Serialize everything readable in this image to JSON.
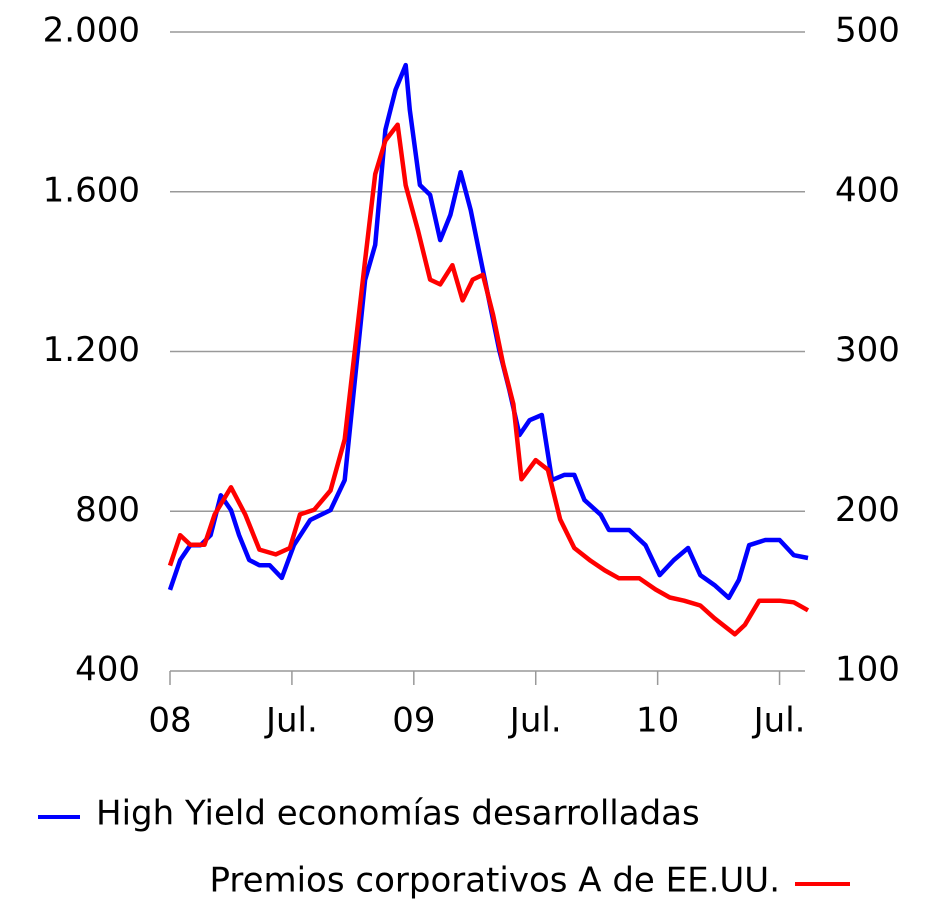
{
  "chart_data": {
    "type": "line",
    "xlim": [
      0,
      31.4
    ],
    "xticks": [
      {
        "value": 0,
        "label": "08"
      },
      {
        "value": 6,
        "label": "Jul."
      },
      {
        "value": 12,
        "label": "09"
      },
      {
        "value": 18,
        "label": "Jul."
      },
      {
        "value": 24,
        "label": "10"
      },
      {
        "value": 30,
        "label": "Jul."
      }
    ],
    "ylim": [
      400,
      2000
    ],
    "yticks": [
      {
        "value": 400,
        "label": "400"
      },
      {
        "value": 800,
        "label": "800"
      },
      {
        "value": 1200,
        "label": "1.200"
      },
      {
        "value": 1600,
        "label": "1.600"
      },
      {
        "value": 2000,
        "label": "2.000"
      }
    ],
    "y2lim": [
      100,
      500
    ],
    "y2ticks": [
      100,
      200,
      300,
      400,
      500
    ],
    "grid": true,
    "series": [
      {
        "name": "High Yield economías desarrolladas",
        "color": "#0000ff",
        "axis": "y",
        "x": [
          0,
          0.5,
          1,
          1.5,
          2,
          2.5,
          3,
          3.4,
          3.9,
          4.4,
          4.9,
          5.5,
          6.1,
          6.9,
          7.9,
          8.6,
          9.1,
          9.6,
          10.1,
          10.6,
          11.1,
          11.6,
          11.8,
          12.3,
          12.8,
          13.3,
          13.8,
          14.3,
          14.8,
          15.2,
          15.7,
          16.2,
          16.7,
          17.2,
          17.7,
          18.3,
          18.8,
          19.4,
          19.9,
          20.4,
          21.2,
          21.6,
          22.6,
          23.4,
          24.1,
          24.8,
          25.5,
          26.1,
          26.8,
          27.5,
          28.0,
          28.5,
          29.3,
          30.0,
          30.7,
          31.4
        ],
        "values": [
          603,
          678,
          715,
          715,
          740,
          840,
          803,
          740,
          678,
          665,
          665,
          633,
          715,
          778,
          803,
          878,
          1129,
          1379,
          1467,
          1755,
          1855,
          1917,
          1805,
          1617,
          1592,
          1479,
          1542,
          1649,
          1554,
          1454,
          1329,
          1204,
          1104,
          991,
          1028,
          1041,
          878,
          891,
          891,
          828,
          791,
          753,
          753,
          715,
          640,
          678,
          708,
          640,
          615,
          583,
          628,
          715,
          728,
          728,
          690,
          683
        ]
      },
      {
        "name": "Premios corporativos A de EE.UU.",
        "color": "#ff0000",
        "axis": "y2",
        "x": [
          0,
          0.5,
          1,
          1.7,
          2.2,
          3,
          3.7,
          4.4,
          5.2,
          5.9,
          6.4,
          7.1,
          7.9,
          8.6,
          9.1,
          9.6,
          10.1,
          10.6,
          11.2,
          11.6,
          12.2,
          12.8,
          13.3,
          13.9,
          14.4,
          14.9,
          15.4,
          15.9,
          16.4,
          16.9,
          17.3,
          18,
          18.6,
          19.2,
          19.9,
          20.7,
          21.4,
          22.1,
          23.1,
          23.9,
          24.6,
          25.3,
          26.1,
          26.8,
          27.8,
          28.3,
          29,
          30,
          30.7,
          31.4
        ],
        "values": [
          166,
          185,
          179,
          179,
          198,
          215,
          198,
          176,
          173,
          177,
          198,
          201,
          213,
          245,
          301,
          357,
          411,
          432,
          442,
          404,
          376,
          345,
          342,
          354,
          332,
          345,
          348,
          323,
          292,
          267,
          220,
          232,
          226,
          195,
          177,
          169,
          163,
          158,
          158,
          151,
          146,
          144,
          141,
          133,
          123,
          129,
          144,
          144,
          143,
          138
        ]
      }
    ]
  }
}
